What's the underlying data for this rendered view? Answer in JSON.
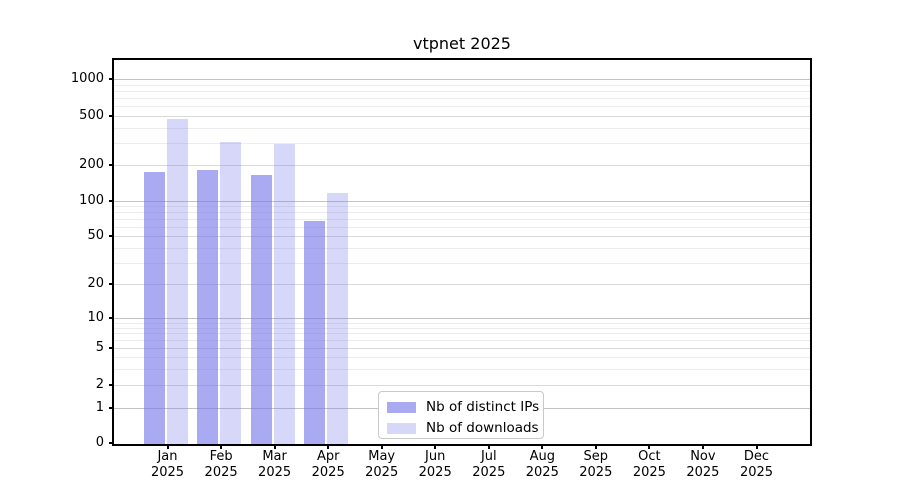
{
  "title": "vtpnet 2025",
  "legend": {
    "items": [
      {
        "label": "Nb of distinct IPs",
        "color": "rgba(118,118,236,0.62)"
      },
      {
        "label": "Nb of downloads",
        "color": "rgba(118,118,236,0.29)"
      }
    ]
  },
  "colors": {
    "ip_bar": "rgba(118,118,236,0.62)",
    "dl_bar": "rgba(118,118,236,0.29)",
    "grid_major": "#c3c3c3",
    "grid_mid": "#dadada",
    "grid_minor": "#ececec",
    "frame": "#000000"
  },
  "x_axis": {
    "months": [
      "Jan",
      "Feb",
      "Mar",
      "Apr",
      "May",
      "Jun",
      "Jul",
      "Aug",
      "Sep",
      "Oct",
      "Nov",
      "Dec"
    ],
    "year": "2025"
  },
  "y_axis": {
    "tick_labels": [
      "0",
      "1",
      "2",
      "5",
      "10",
      "20",
      "50",
      "100",
      "200",
      "500",
      "1000"
    ]
  },
  "chart_data": {
    "type": "bar",
    "title": "vtpnet 2025",
    "categories": [
      "Jan 2025",
      "Feb 2025",
      "Mar 2025",
      "Apr 2025",
      "May 2025",
      "Jun 2025",
      "Jul 2025",
      "Aug 2025",
      "Sep 2025",
      "Oct 2025",
      "Nov 2025",
      "Dec 2025"
    ],
    "series": [
      {
        "name": "Nb of distinct IPs",
        "values": [
          175,
          183,
          164,
          68,
          0,
          0,
          0,
          0,
          0,
          0,
          0,
          0
        ]
      },
      {
        "name": "Nb of downloads",
        "values": [
          470,
          310,
          295,
          117,
          0,
          0,
          0,
          0,
          0,
          0,
          0,
          0
        ]
      }
    ],
    "xlabel": "",
    "ylabel": "",
    "yscale": "log-like",
    "yticks": [
      0,
      1,
      2,
      5,
      10,
      20,
      50,
      100,
      200,
      500,
      1000
    ],
    "ylim": [
      0,
      1400
    ],
    "grid": "horizontal major + minor",
    "legend_position": "lower center-left, inside plot"
  }
}
